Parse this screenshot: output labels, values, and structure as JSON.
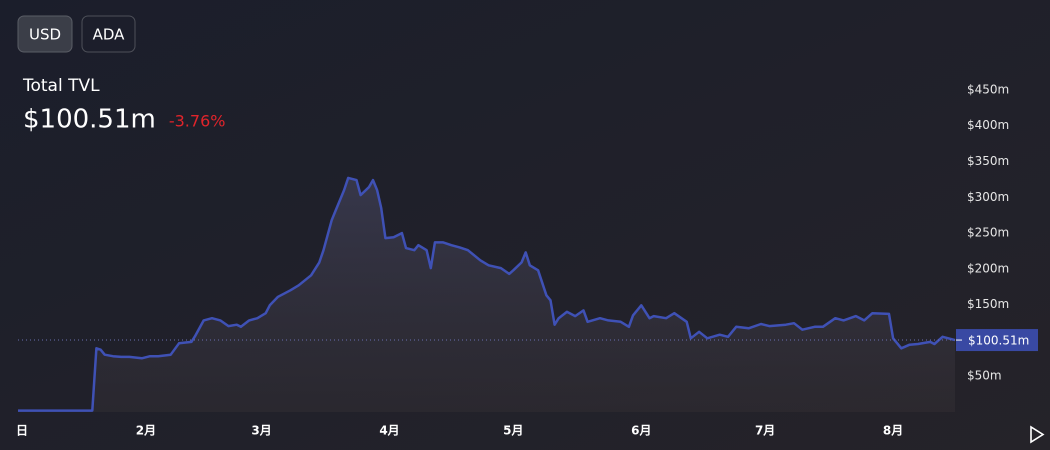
{
  "controls": {
    "buttons": [
      "USD",
      "ADA"
    ]
  },
  "chart_data": {
    "type": "area",
    "title": "Total TVL",
    "last_value": {
      "value": 100.51,
      "label": "$100.51m"
    },
    "change": {
      "value": -3.76,
      "label": "-3.76%"
    },
    "color": "#3f51b5",
    "x": [
      0,
      18,
      19,
      20,
      21,
      23,
      25,
      27,
      30,
      32,
      34,
      37,
      39,
      42,
      43,
      45,
      47,
      49,
      51,
      53,
      54,
      56,
      58,
      60,
      61,
      63,
      66,
      68,
      71,
      73,
      74,
      76,
      77,
      79,
      80,
      82,
      83,
      85,
      86,
      87,
      88,
      89,
      91,
      93,
      94,
      96,
      97,
      99,
      100,
      101,
      103,
      105,
      107,
      109,
      112,
      114,
      117,
      119,
      120,
      122,
      123,
      124,
      126,
      128,
      129,
      130,
      131,
      133,
      135,
      137,
      138,
      141,
      143,
      146,
      148,
      149,
      151,
      153,
      154,
      157,
      159,
      162,
      163,
      165,
      167,
      170,
      172,
      174,
      177,
      180,
      182,
      186,
      188,
      190,
      193,
      195,
      198,
      200,
      203,
      205,
      207,
      211,
      212,
      214,
      216,
      218,
      221,
      222,
      224,
      227
    ],
    "values": [
      2,
      2,
      89,
      87,
      80,
      78,
      77,
      77,
      75,
      78,
      78,
      80,
      96,
      98,
      107,
      128,
      131,
      128,
      120,
      122,
      119,
      128,
      131,
      138,
      149,
      161,
      170,
      177,
      191,
      209,
      226,
      268,
      282,
      310,
      327,
      324,
      303,
      314,
      324,
      310,
      285,
      243,
      244,
      250,
      229,
      226,
      233,
      226,
      201,
      237,
      237,
      233,
      230,
      226,
      212,
      205,
      201,
      193,
      198,
      209,
      223,
      205,
      198,
      163,
      156,
      122,
      131,
      140,
      134,
      142,
      126,
      131,
      128,
      126,
      119,
      135,
      149,
      131,
      134,
      131,
      138,
      126,
      103,
      112,
      103,
      108,
      105,
      119,
      117,
      123,
      120,
      122,
      124,
      115,
      119,
      119,
      131,
      128,
      134,
      128,
      138,
      137,
      103,
      89,
      94,
      95,
      98,
      95,
      105,
      100.51
    ],
    "xlim": [
      0,
      227
    ],
    "xticks": [
      {
        "value": 1,
        "label": "日"
      },
      {
        "value": 31,
        "label": "2月"
      },
      {
        "value": 59,
        "label": "3月"
      },
      {
        "value": 90,
        "label": "4月"
      },
      {
        "value": 120,
        "label": "5月"
      },
      {
        "value": 151,
        "label": "6月"
      },
      {
        "value": 181,
        "label": "7月"
      },
      {
        "value": 212,
        "label": "8月"
      }
    ],
    "ylim": [
      0,
      475
    ],
    "yticks": [
      {
        "value": 50,
        "label": "$50m"
      },
      {
        "value": 150,
        "label": "$150m"
      },
      {
        "value": 200,
        "label": "$200m"
      },
      {
        "value": 250,
        "label": "$250m"
      },
      {
        "value": 300,
        "label": "$300m"
      },
      {
        "value": 350,
        "label": "$350m"
      },
      {
        "value": 400,
        "label": "$400m"
      },
      {
        "value": 450,
        "label": "$450m"
      }
    ]
  }
}
